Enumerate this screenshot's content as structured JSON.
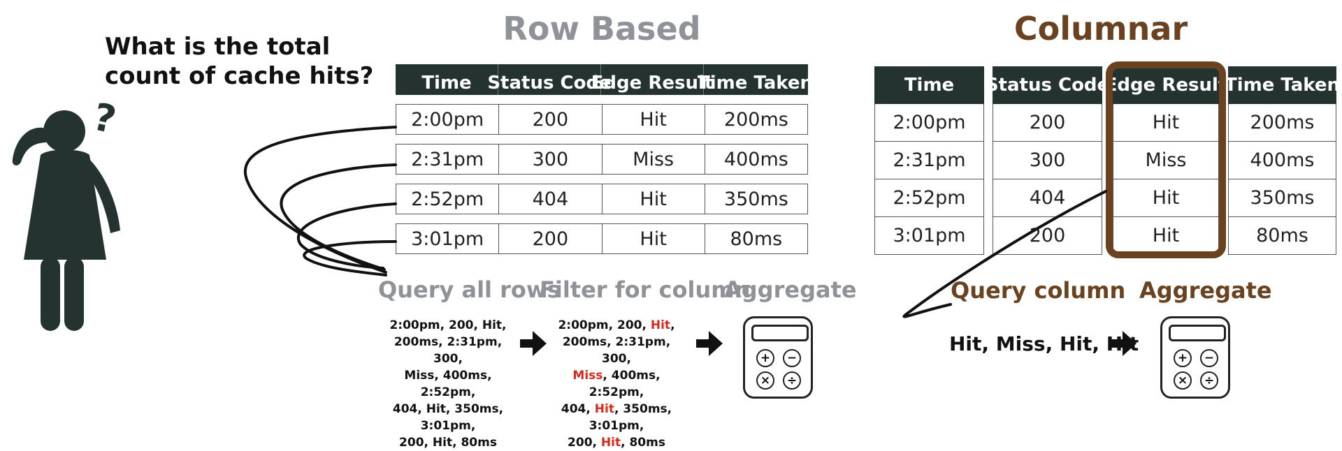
{
  "question": {
    "line1": "What is the total",
    "line2": "count of cache hits?",
    "mark": "?"
  },
  "row_based": {
    "title": "Row Based",
    "headers": [
      "Time",
      "Status Code",
      "Edge Result",
      "Time Taken"
    ],
    "rows": [
      [
        "2:00pm",
        "200",
        "Hit",
        "200ms"
      ],
      [
        "2:31pm",
        "300",
        "Miss",
        "400ms"
      ],
      [
        "2:52pm",
        "404",
        "Hit",
        "350ms"
      ],
      [
        "3:01pm",
        "200",
        "Hit",
        "80ms"
      ]
    ],
    "steps": [
      "Query all rows",
      "Filter for column",
      "Aggregate"
    ],
    "all_rows_text": [
      "2:00pm, 200, Hit,",
      "200ms, 2:31pm, 300,",
      "Miss, 400ms, 2:52pm,",
      "404, Hit, 350ms, 3:01pm,",
      "200, Hit, 80ms"
    ],
    "filter_text": [
      {
        "pre": "2:00pm, 200, ",
        "hl": "Hit",
        "post": ","
      },
      {
        "pre": "200ms, 2:31pm, 300,",
        "hl": "",
        "post": ""
      },
      {
        "pre": "",
        "hl": "Miss",
        "post": ", 400ms, 2:52pm,"
      },
      {
        "pre": "404, ",
        "hl": "Hit",
        "post": ", 350ms, 3:01pm,"
      },
      {
        "pre": "200, ",
        "hl": "Hit",
        "post": ", 80ms"
      }
    ]
  },
  "columnar": {
    "title": "Columnar",
    "columns": [
      {
        "header": "Time",
        "cells": [
          "2:00pm",
          "2:31pm",
          "2:52pm",
          "3:01pm"
        ]
      },
      {
        "header": "Status Code",
        "cells": [
          "200",
          "300",
          "404",
          "200"
        ]
      },
      {
        "header": "Edge Result",
        "cells": [
          "Hit",
          "Miss",
          "Hit",
          "Hit"
        ]
      },
      {
        "header": "Time Taken",
        "cells": [
          "200ms",
          "400ms",
          "350ms",
          "80ms"
        ]
      }
    ],
    "steps": [
      "Query column",
      "Aggregate"
    ],
    "column_values": "Hit,  Miss, Hit, Hit"
  },
  "calculator_keys": [
    "+",
    "−",
    "×",
    "÷"
  ],
  "colors": {
    "header_bg": "#243330",
    "row_accent": "#8f9398",
    "col_accent": "#6b4220",
    "highlight_red": "#d42a1e"
  }
}
